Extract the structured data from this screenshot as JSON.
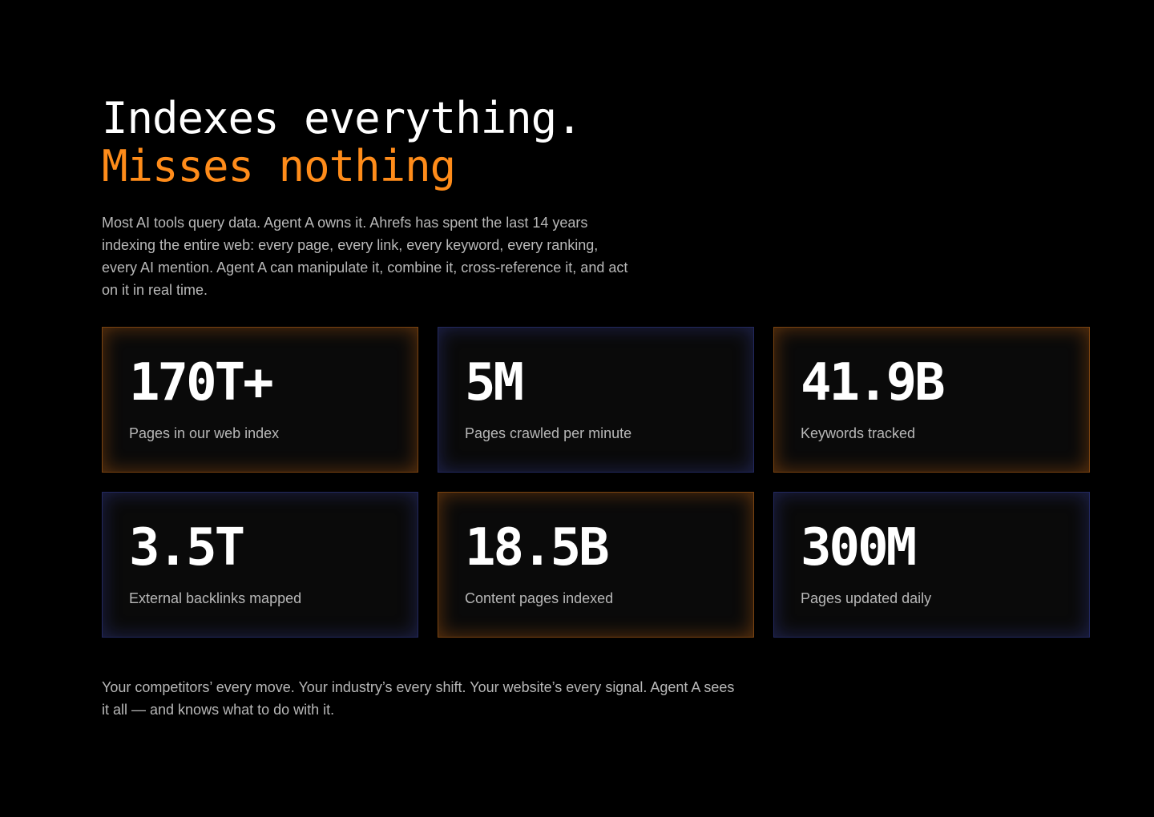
{
  "heading": {
    "line1": "Indexes everything.",
    "line2": "Misses nothing"
  },
  "intro": "Most AI tools query data. Agent A owns it. Ahrefs has spent the last 14 years indexing the entire web: every page, every link, every keyword, every ranking, every AI mention. Agent A can manipulate it, combine it, cross-reference it, and act on it in real time.",
  "stats": [
    {
      "value": "170T+",
      "label": "Pages in our web index"
    },
    {
      "value": "5M",
      "label": "Pages crawled per minute"
    },
    {
      "value": "41.9B",
      "label": "Keywords tracked"
    },
    {
      "value": "3.5T",
      "label": "External backlinks mapped"
    },
    {
      "value": "18.5B",
      "label": "Content pages indexed"
    },
    {
      "value": "300M",
      "label": "Pages updated daily"
    }
  ],
  "outro": "Your competitors’ every move. Your industry’s every shift. Your website’s every signal. Agent A sees it all — and knows what to do with it."
}
